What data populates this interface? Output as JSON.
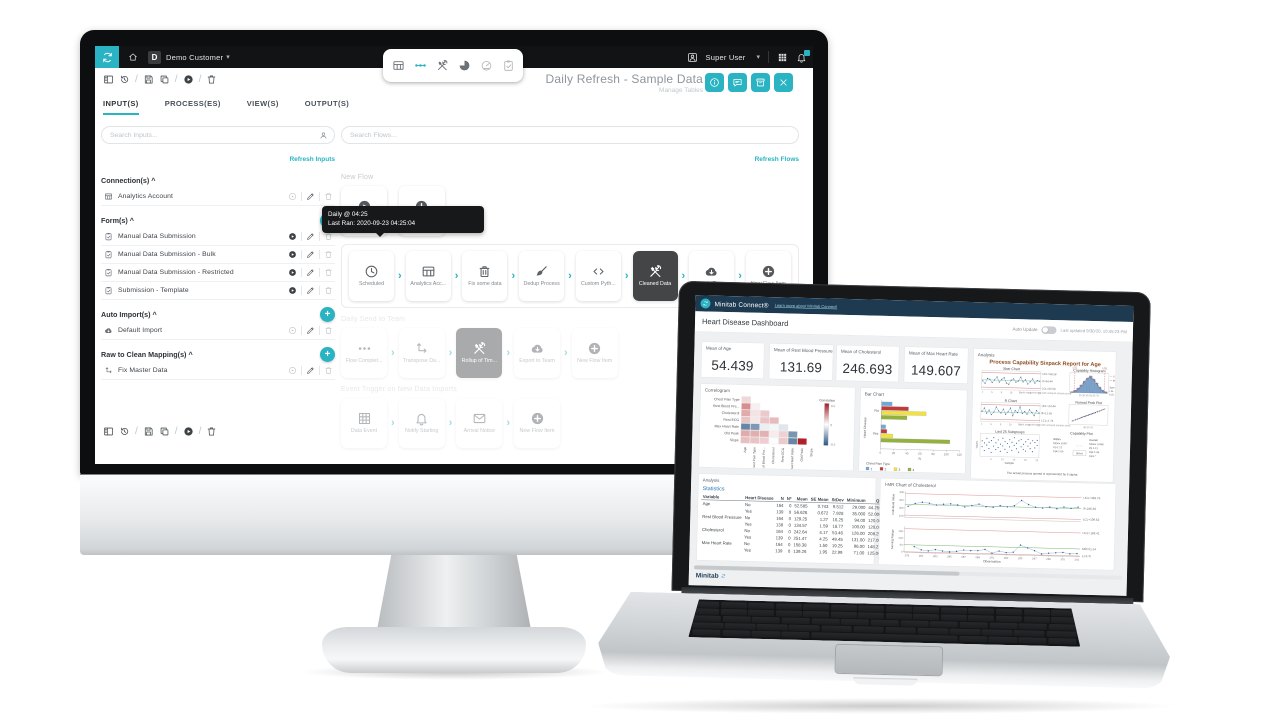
{
  "accent_teal": "#2ab3c2",
  "desktop": {
    "topbar": {
      "org_initial": "D",
      "org_label": "Demo Customer",
      "user_label": "Super User",
      "center_icons": [
        {
          "icon": "table",
          "state": "default"
        },
        {
          "icon": "flow-dots",
          "state": "active"
        },
        {
          "icon": "tools",
          "state": "default"
        },
        {
          "icon": "pie",
          "state": "default"
        },
        {
          "icon": "gauge",
          "state": "muted"
        },
        {
          "icon": "clipboard-check",
          "state": "muted"
        }
      ]
    },
    "title": "Daily Refresh - Sample Data",
    "subtitle": "Manage Tables",
    "title_buttons": [
      "info",
      "comment",
      "box-save",
      "close"
    ],
    "action_icons": [
      "panel",
      "history",
      "sep",
      "save",
      "copy",
      "sep",
      "play-filled",
      "sep",
      "trash"
    ],
    "tabs": [
      "INPUT(S)",
      "PROCESS(ES)",
      "VIEW(S)",
      "OUTPUT(S)"
    ],
    "active_tab": 0,
    "inputs_panel": {
      "search_placeholder": "Search Inputs...",
      "refresh_label": "Refresh Inputs",
      "sections": [
        {
          "label": "Connection(s)",
          "add": false,
          "items": [
            {
              "icon": "table",
              "label": "Analytics Account",
              "play_active": false
            }
          ]
        },
        {
          "label": "Form(s)",
          "add": true,
          "items": [
            {
              "icon": "clipboard-check",
              "label": "Manual Data Submission",
              "play_active": true
            },
            {
              "icon": "clipboard-check",
              "label": "Manual Data Submission - Bulk",
              "play_active": true
            },
            {
              "icon": "clipboard-check",
              "label": "Manual Data Submission - Restricted",
              "play_active": true
            },
            {
              "icon": "clipboard-check",
              "label": "Submission - Template",
              "play_active": true
            }
          ]
        },
        {
          "label": "Auto Import(s)",
          "add": true,
          "items": [
            {
              "icon": "cloud-down",
              "label": "Default Import",
              "play_active": false
            }
          ]
        },
        {
          "label": "Raw to Clean Mapping(s)",
          "add": true,
          "items": [
            {
              "icon": "transpose",
              "label": "Fix Master Data",
              "play_active": false
            }
          ]
        }
      ]
    },
    "flows_panel": {
      "search_placeholder": "Search Flows...",
      "refresh_label": "Refresh Flows",
      "tooltip": {
        "line1": "Daily @ 04:25",
        "line2": "Last Ran: 2020-09-23 04:25:04"
      },
      "sections": [
        {
          "label": "New Flow",
          "boxed": false,
          "faded": false,
          "cards": [
            {
              "icon": "play-circle",
              "label": "Manual"
            },
            {
              "icon": "plus-circle",
              "label": "New Flow Item"
            }
          ]
        },
        {
          "label": "",
          "boxed": true,
          "faded": false,
          "cards": [
            {
              "icon": "clock",
              "label": "Scheduled"
            },
            {
              "icon": "table",
              "label": "Analytics Acc..."
            },
            {
              "icon": "bin",
              "label": "Fix some data"
            },
            {
              "icon": "broom",
              "label": "Dedup Process"
            },
            {
              "icon": "code",
              "label": "Custom Pyth..."
            },
            {
              "icon": "tools",
              "label": "Cleaned Data",
              "dark": true
            },
            {
              "icon": "cloud-down",
              "label": "Sample Expor..."
            },
            {
              "icon": "plus-circle",
              "label": "New Flow Item"
            }
          ]
        },
        {
          "label": "Daily Send to Team",
          "boxed": false,
          "faded": true,
          "cards": [
            {
              "icon": "dots",
              "label": "Flow Complet..."
            },
            {
              "icon": "transpose",
              "label": "Transpose Da..."
            },
            {
              "icon": "tools",
              "label": "Rollup of Tim...",
              "dark": true
            },
            {
              "icon": "cloud-down",
              "label": "Export to Team"
            },
            {
              "icon": "plus-circle",
              "label": "New Flow Item"
            }
          ]
        },
        {
          "label": "Event Trigger on New Data Imports",
          "boxed": false,
          "faded": true,
          "cards": [
            {
              "icon": "grid16",
              "label": "Data Event"
            },
            {
              "icon": "bell",
              "label": "Notify Starting"
            },
            {
              "icon": "mail",
              "label": "Arrival Notice"
            },
            {
              "icon": "plus-circle",
              "label": "New Flow Item"
            }
          ]
        }
      ]
    }
  },
  "laptop": {
    "navbar": {
      "brand": "Minitab Connect®",
      "link": "Learn more about Minitab Connect!"
    },
    "title": "Heart Disease Dashboard",
    "auto_update_label": "Auto Update",
    "last_updated": "Last updated 9/30/20, 10:45:23 PM",
    "kpis": [
      {
        "label": "Mean of Age",
        "value": "54.439"
      },
      {
        "label": "Mean of Rest Blood Pressure",
        "value": "131.69"
      },
      {
        "label": "Mean of Cholesterol",
        "value": "246.693"
      },
      {
        "label": "Mean of Max Heart Rate",
        "value": "149.607"
      }
    ],
    "analysis_label": "Analysis",
    "stats_card_label": "Analysis",
    "statistics_label": "Statistics",
    "stats_headers": [
      "Variable",
      "Heart Disease",
      "N",
      "N*",
      "Mean",
      "SE Mean",
      "StDev",
      "Minimum",
      "Q1",
      "Median",
      "Q3",
      "Maximum"
    ],
    "stats_groups": [
      {
        "variable": "Age",
        "rows": [
          [
            "No",
            "164",
            "0",
            "52.585",
            "0.743",
            "9.512",
            "29.000",
            "44.250",
            "52.000",
            "59.000",
            "76.000"
          ],
          [
            "Yes",
            "139",
            "0",
            "56.626",
            "0.672",
            "7.928",
            "35.000",
            "52.000",
            "58.000",
            "62.000",
            "77.000"
          ]
        ]
      },
      {
        "variable": "Rest Blood Pressure",
        "rows": [
          [
            "No",
            "164",
            "0",
            "129.25",
            "1.27",
            "16.25",
            "94.00",
            "120.00",
            "130.00",
            "140.00",
            "180.00"
          ],
          [
            "Yes",
            "139",
            "0",
            "134.57",
            "1.59",
            "18.77",
            "100.00",
            "120.00",
            "130.00",
            "145.00",
            "200.00"
          ]
        ]
      },
      {
        "variable": "Cholesterol",
        "rows": [
          [
            "No",
            "164",
            "0",
            "242.64",
            "4.17",
            "53.46",
            "126.00",
            "208.25",
            "234.00",
            "267.75",
            "564.00"
          ],
          [
            "Yes",
            "139",
            "0",
            "251.47",
            "4.25",
            "49.45",
            "131.00",
            "217.00",
            "249.00",
            "284.00",
            "409.00"
          ]
        ]
      },
      {
        "variable": "Max Heart Rate",
        "rows": [
          [
            "No",
            "164",
            "0",
            "158.38",
            "1.50",
            "19.25",
            "96.00",
            "148.25",
            "161.00",
            "172.00",
            "202.00"
          ],
          [
            "Yes",
            "139",
            "0",
            "139.26",
            "1.95",
            "22.99",
            "71.00",
            "125.00",
            "142.00",
            "157.00",
            "195.00"
          ]
        ]
      }
    ],
    "footer_brand": "Minitab"
  },
  "chart_data": [
    {
      "id": "correlogram",
      "type": "heatmap",
      "title": "Correlogram",
      "rows": [
        "Chest Pain Type",
        "Rest Blood Pre...",
        "Cholesterol",
        "Rest ECG",
        "Max Heart Rate",
        "Old Peak",
        "Slope"
      ],
      "cols": [
        "Age",
        "Chest Pain Type",
        "Rest Blood Pre...",
        "Cholesterol",
        "Rest ECG",
        "Max Heart Rate",
        "Old Peak",
        "Slope"
      ],
      "values": [
        [
          0.1
        ],
        [
          0.28,
          0.04
        ],
        [
          0.21,
          0.07,
          0.13
        ],
        [
          0.15,
          0.06,
          0.15,
          0.17
        ],
        [
          -0.39,
          -0.33,
          -0.05,
          -0.03,
          -0.08
        ],
        [
          0.21,
          0.2,
          0.19,
          0.05,
          0.11,
          -0.34
        ],
        [
          0.16,
          0.15,
          0.12,
          -0.01,
          0.13,
          -0.39,
          0.58
        ]
      ],
      "legend": {
        "title": "Correlation",
        "max_label": "0.5",
        "mid_label": "0",
        "min_label": "-0.5"
      }
    },
    {
      "id": "barchart",
      "type": "bar",
      "title": "Bar Chart",
      "orientation": "horizontal",
      "categories": [
        "No",
        "Yes"
      ],
      "series": [
        {
          "name": "1",
          "color": "#6fa8dc",
          "values": [
            16,
            7
          ]
        },
        {
          "name": "2",
          "color": "#c0393c",
          "values": [
            41,
            9
          ]
        },
        {
          "name": "3",
          "color": "#f2e33c",
          "values": [
            68,
            18
          ]
        },
        {
          "name": "4",
          "color": "#94b13c",
          "values": [
            39,
            105
          ]
        }
      ],
      "xlabel": "N",
      "ylabel": "Heart Disease",
      "xlim": [
        0,
        120
      ],
      "xtick_step": 20,
      "legend_title": "Chest Pain Type"
    },
    {
      "id": "sixpack",
      "type": "multi",
      "title": "Process Capability Sixpack Report for Age",
      "footer": "The actual process spread is represented by 6 sigma.",
      "note": "Tests are performed with unequal sample sizes.",
      "xbar": {
        "title": "Xbar Chart",
        "ylabel": "Sample Mean",
        "values": [
          53.9,
          52.6,
          55.2,
          54.8,
          53.1,
          54.5,
          56.1,
          53.4,
          54.9,
          55.8,
          53.0,
          52.4,
          54.6,
          55.3,
          53.6,
          54.2,
          56.3,
          53.8,
          55.0,
          52.8,
          54.0,
          55.5,
          53.3,
          54.7,
          54.4
        ],
        "ucl": 58.28,
        "mean": 54.44,
        "lcl": 50.59,
        "labels": [
          "UCL=58.28",
          "X̄=54.44",
          "LCL=50.59"
        ]
      },
      "rchart": {
        "title": "R Chart",
        "ylabel": "Sample Range",
        "values": [
          14,
          19,
          11,
          16,
          9,
          13,
          21,
          15,
          12,
          18,
          10,
          14,
          20,
          8,
          16,
          13,
          22,
          12,
          15,
          11,
          18,
          14,
          9,
          17,
          13
        ],
        "ucl": 24.44,
        "mean": 13.09,
        "lcl": 1.74,
        "labels": [
          "UCL=24.44",
          "R̄=13.09",
          "LCL=1.74"
        ]
      },
      "hist": {
        "title": "Capability Histogram",
        "bins": [
          1,
          3,
          6,
          10,
          15,
          19,
          22,
          18,
          13,
          8,
          4,
          2
        ],
        "lsl_label": "LSL",
        "usl_label": "USL",
        "legend": [
          "Overall",
          "Within"
        ],
        "specs": [
          "Specifications",
          "LSL 20",
          "USL 80"
        ]
      },
      "norm": {
        "title": "Normal Prob Plot",
        "subtitle": "AD: 1.137, P: < 0.005",
        "points": [
          [
            -2.2,
            31
          ],
          [
            -1.8,
            35
          ],
          [
            -1.5,
            38
          ],
          [
            -1.2,
            41
          ],
          [
            -1.0,
            44
          ],
          [
            -0.8,
            46
          ],
          [
            -0.6,
            48
          ],
          [
            -0.4,
            50
          ],
          [
            -0.2,
            52
          ],
          [
            0,
            54
          ],
          [
            0.2,
            56
          ],
          [
            0.4,
            58
          ],
          [
            0.6,
            60
          ],
          [
            0.8,
            62
          ],
          [
            1.0,
            64
          ],
          [
            1.3,
            67
          ],
          [
            1.6,
            70
          ],
          [
            1.9,
            74
          ],
          [
            2.2,
            77
          ]
        ]
      },
      "subgroups": {
        "title": "Last 25 Subgroups",
        "xlabel": "Sample",
        "ylabel": "Values",
        "points": [
          [
            1,
            48
          ],
          [
            1,
            62
          ],
          [
            2,
            39
          ],
          [
            2,
            57
          ],
          [
            3,
            52
          ],
          [
            3,
            68
          ],
          [
            4,
            44
          ],
          [
            4,
            59
          ],
          [
            5,
            35
          ],
          [
            5,
            63
          ],
          [
            6,
            50
          ],
          [
            6,
            70
          ],
          [
            7,
            42
          ],
          [
            7,
            58
          ],
          [
            8,
            47
          ],
          [
            8,
            65
          ],
          [
            9,
            38
          ],
          [
            9,
            55
          ],
          [
            10,
            51
          ],
          [
            10,
            69
          ],
          [
            11,
            43
          ],
          [
            11,
            61
          ],
          [
            12,
            36
          ],
          [
            12,
            57
          ],
          [
            13,
            49
          ],
          [
            13,
            66
          ],
          [
            14,
            41
          ],
          [
            14,
            60
          ],
          [
            15,
            53
          ],
          [
            15,
            71
          ],
          [
            16,
            45
          ],
          [
            16,
            58
          ],
          [
            17,
            37
          ],
          [
            17,
            64
          ],
          [
            18,
            50
          ],
          [
            18,
            67
          ],
          [
            19,
            44
          ],
          [
            19,
            56
          ],
          [
            20,
            40
          ],
          [
            20,
            62
          ],
          [
            21,
            52
          ],
          [
            21,
            68
          ],
          [
            22,
            46
          ],
          [
            22,
            59
          ],
          [
            23,
            39
          ],
          [
            23,
            65
          ],
          [
            24,
            48
          ],
          [
            24,
            61
          ],
          [
            25,
            54
          ],
          [
            25,
            66
          ]
        ]
      },
      "capplot": {
        "title": "Capability Plot",
        "within": [
          "Within",
          "StDev 8.957",
          "Cp 1.12",
          "Cpk 1.05"
        ],
        "overall": [
          "Overall",
          "StDev 9.038",
          "Pp 1.11",
          "Ppk 1.04",
          "Cpm *"
        ],
        "specs_label": "Specs"
      }
    },
    {
      "id": "imr",
      "type": "control",
      "title": "I-MR Chart of Cholesterol",
      "xlabel": "Observation",
      "xticks": [
        279,
        281,
        283,
        285,
        287,
        289,
        291,
        293,
        295,
        297,
        299,
        301,
        303
      ],
      "individual": {
        "ylabel": "Individual Value",
        "yticks": [
          100,
          200,
          300,
          400
        ],
        "ymin": 80,
        "ymax": 410,
        "values": [
          222,
          261,
          278,
          268,
          247,
          259,
          266,
          254,
          231,
          251,
          272,
          241,
          236,
          258,
          246,
          262,
          331,
          281,
          250,
          242,
          257,
          238,
          261,
          247,
          264
        ],
        "ucl": 383.76,
        "mean": 246.69,
        "lcl": 109.62,
        "labels": [
          "UCL=383.76",
          "X̄=246.69",
          "LCL=109.62"
        ]
      },
      "moving_range": {
        "ylabel": "Moving Range",
        "yticks": [
          0,
          50,
          100,
          150
        ],
        "ymin": -5,
        "ymax": 185,
        "values": [
          39,
          17,
          10,
          21,
          12,
          7,
          12,
          23,
          20,
          21,
          31,
          5,
          22,
          12,
          16,
          69,
          50,
          31,
          8,
          15,
          19,
          23,
          14,
          17
        ],
        "ucl": 168.41,
        "mean": 51.54,
        "lcl": 0,
        "labels": [
          "UCL=168.41",
          "MR̄=51.54",
          "LCL=0"
        ]
      }
    }
  ]
}
